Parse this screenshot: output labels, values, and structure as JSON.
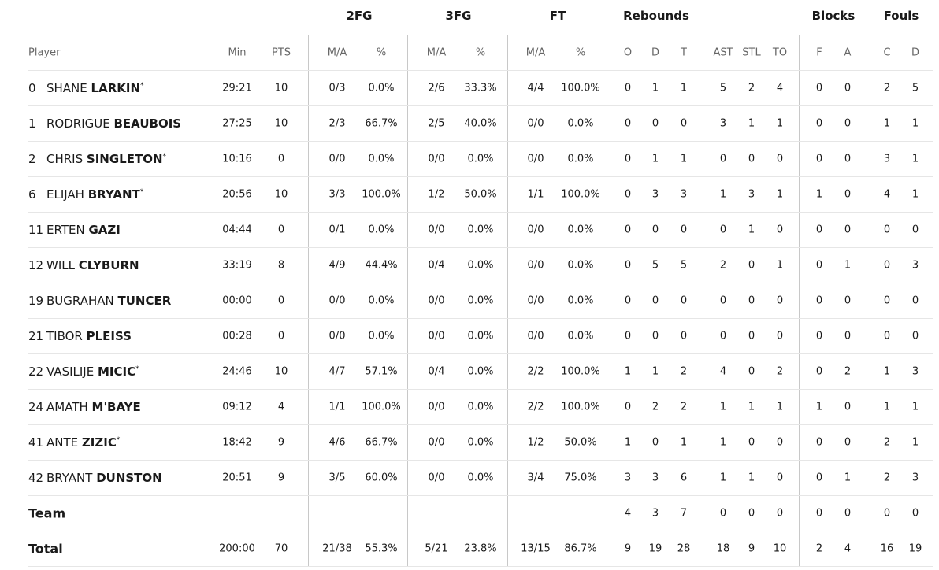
{
  "header": {
    "groups": [
      "2FG",
      "3FG",
      "FT",
      "Rebounds",
      "Blocks",
      "Fouls"
    ],
    "columns": [
      "Player",
      "Min",
      "PTS",
      "M/A",
      "%",
      "M/A",
      "%",
      "M/A",
      "%",
      "O",
      "D",
      "T",
      "AST",
      "STL",
      "TO",
      "F",
      "A",
      "C",
      "D"
    ]
  },
  "rows": [
    {
      "number": "0",
      "first": "SHANE",
      "last": "LARKIN",
      "mark": "*",
      "stats": [
        "29:21",
        "10",
        "0/3",
        "0.0%",
        "2/6",
        "33.3%",
        "4/4",
        "100.0%",
        "0",
        "1",
        "1",
        "5",
        "2",
        "4",
        "0",
        "0",
        "2",
        "5"
      ]
    },
    {
      "number": "1",
      "first": "RODRIGUE",
      "last": "BEAUBOIS",
      "stats": [
        "27:25",
        "10",
        "2/3",
        "66.7%",
        "2/5",
        "40.0%",
        "0/0",
        "0.0%",
        "0",
        "0",
        "0",
        "3",
        "1",
        "1",
        "0",
        "0",
        "1",
        "1"
      ]
    },
    {
      "number": "2",
      "first": "CHRIS",
      "last": "SINGLETON",
      "mark": "*",
      "stats": [
        "10:16",
        "0",
        "0/0",
        "0.0%",
        "0/0",
        "0.0%",
        "0/0",
        "0.0%",
        "0",
        "1",
        "1",
        "0",
        "0",
        "0",
        "0",
        "0",
        "3",
        "1"
      ]
    },
    {
      "number": "6",
      "first": "ELIJAH",
      "last": "BRYANT",
      "mark": "*",
      "stats": [
        "20:56",
        "10",
        "3/3",
        "100.0%",
        "1/2",
        "50.0%",
        "1/1",
        "100.0%",
        "0",
        "3",
        "3",
        "1",
        "3",
        "1",
        "1",
        "0",
        "4",
        "1"
      ]
    },
    {
      "number": "11",
      "first": "ERTEN",
      "last": "GAZI",
      "stats": [
        "04:44",
        "0",
        "0/1",
        "0.0%",
        "0/0",
        "0.0%",
        "0/0",
        "0.0%",
        "0",
        "0",
        "0",
        "0",
        "1",
        "0",
        "0",
        "0",
        "0",
        "0"
      ]
    },
    {
      "number": "12",
      "first": "WILL",
      "last": "CLYBURN",
      "stats": [
        "33:19",
        "8",
        "4/9",
        "44.4%",
        "0/4",
        "0.0%",
        "0/0",
        "0.0%",
        "0",
        "5",
        "5",
        "2",
        "0",
        "1",
        "0",
        "1",
        "0",
        "3"
      ]
    },
    {
      "number": "19",
      "first": "BUGRAHAN",
      "last": "TUNCER",
      "stats": [
        "00:00",
        "0",
        "0/0",
        "0.0%",
        "0/0",
        "0.0%",
        "0/0",
        "0.0%",
        "0",
        "0",
        "0",
        "0",
        "0",
        "0",
        "0",
        "0",
        "0",
        "0"
      ]
    },
    {
      "number": "21",
      "first": "TIBOR",
      "last": "PLEISS",
      "stats": [
        "00:28",
        "0",
        "0/0",
        "0.0%",
        "0/0",
        "0.0%",
        "0/0",
        "0.0%",
        "0",
        "0",
        "0",
        "0",
        "0",
        "0",
        "0",
        "0",
        "0",
        "0"
      ]
    },
    {
      "number": "22",
      "first": "VASILIJE",
      "last": "MICIC",
      "mark": "*",
      "stats": [
        "24:46",
        "10",
        "4/7",
        "57.1%",
        "0/4",
        "0.0%",
        "2/2",
        "100.0%",
        "1",
        "1",
        "2",
        "4",
        "0",
        "2",
        "0",
        "2",
        "1",
        "3"
      ]
    },
    {
      "number": "24",
      "first": "AMATH",
      "last": "M'BAYE",
      "stats": [
        "09:12",
        "4",
        "1/1",
        "100.0%",
        "0/0",
        "0.0%",
        "2/2",
        "100.0%",
        "0",
        "2",
        "2",
        "1",
        "1",
        "1",
        "1",
        "0",
        "1",
        "1"
      ]
    },
    {
      "number": "41",
      "first": "ANTE",
      "last": "ZIZIC",
      "mark": "*",
      "stats": [
        "18:42",
        "9",
        "4/6",
        "66.7%",
        "0/0",
        "0.0%",
        "1/2",
        "50.0%",
        "1",
        "0",
        "1",
        "1",
        "0",
        "0",
        "0",
        "0",
        "2",
        "1"
      ]
    },
    {
      "number": "42",
      "first": "BRYANT",
      "last": "DUNSTON",
      "stats": [
        "20:51",
        "9",
        "3/5",
        "60.0%",
        "0/0",
        "0.0%",
        "3/4",
        "75.0%",
        "3",
        "3",
        "6",
        "1",
        "1",
        "0",
        "0",
        "1",
        "2",
        "3"
      ]
    }
  ],
  "team": {
    "label": "Team",
    "stats": [
      null,
      null,
      null,
      null,
      null,
      null,
      null,
      null,
      "4",
      "3",
      "7",
      "0",
      "0",
      "0",
      "0",
      "0",
      "0",
      "0"
    ]
  },
  "total": {
    "label": "Total",
    "stats": [
      "200:00",
      "70",
      "21/38",
      "55.3%",
      "5/21",
      "23.8%",
      "13/15",
      "86.7%",
      "9",
      "19",
      "28",
      "18",
      "9",
      "10",
      "2",
      "4",
      "16",
      "19"
    ]
  }
}
